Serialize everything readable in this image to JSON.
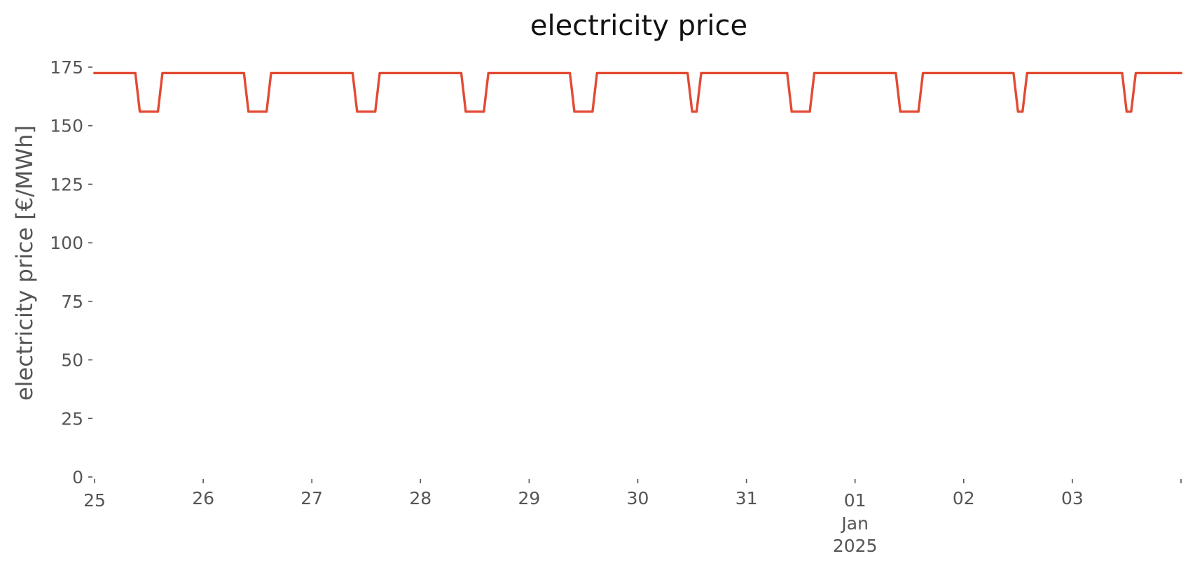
{
  "chart_data": {
    "type": "line",
    "title": "electricity price",
    "xlabel": "",
    "ylabel": "electricity price [€/MWh]",
    "ylim": [
      0,
      175
    ],
    "xlim": [
      "2024-12-25 00:00",
      "2025-01-04 00:00"
    ],
    "y_ticks": [
      "0",
      "25",
      "50",
      "75",
      "100",
      "125",
      "150",
      "175"
    ],
    "x_ticks": [
      {
        "value": "2024-12-25",
        "label": "25"
      },
      {
        "value": "2024-12-26",
        "label": "26"
      },
      {
        "value": "2024-12-27",
        "label": "27"
      },
      {
        "value": "2024-12-28",
        "label": "28"
      },
      {
        "value": "2024-12-29",
        "label": "29"
      },
      {
        "value": "2024-12-30",
        "label": "30"
      },
      {
        "value": "2024-12-31",
        "label": "31"
      },
      {
        "value": "2025-01-01",
        "label": "01",
        "sublabels": [
          "Jan",
          "2025"
        ]
      },
      {
        "value": "2025-01-02",
        "label": "02"
      },
      {
        "value": "2025-01-03",
        "label": "03"
      },
      {
        "value": "2025-01-04",
        "label": ""
      }
    ],
    "grid": false,
    "series": [
      {
        "color": "#e24a33",
        "x": [
          "2024-12-25 00:00",
          "2024-12-25 09:00",
          "2024-12-25 10:00",
          "2024-12-25 14:00",
          "2024-12-25 15:00",
          "2024-12-26 09:00",
          "2024-12-26 10:00",
          "2024-12-26 14:00",
          "2024-12-26 15:00",
          "2024-12-27 09:00",
          "2024-12-27 10:00",
          "2024-12-27 14:00",
          "2024-12-27 15:00",
          "2024-12-28 09:00",
          "2024-12-28 10:00",
          "2024-12-28 14:00",
          "2024-12-28 15:00",
          "2024-12-29 09:00",
          "2024-12-29 10:00",
          "2024-12-29 14:00",
          "2024-12-29 15:00",
          "2024-12-30 11:00",
          "2024-12-30 12:00",
          "2024-12-30 13:00",
          "2024-12-30 14:00",
          "2024-12-31 09:00",
          "2024-12-31 10:00",
          "2024-12-31 14:00",
          "2024-12-31 15:00",
          "2025-01-01 09:00",
          "2025-01-01 10:00",
          "2025-01-01 14:00",
          "2025-01-01 15:00",
          "2025-01-02 11:00",
          "2025-01-02 12:00",
          "2025-01-02 13:00",
          "2025-01-02 14:00",
          "2025-01-03 11:00",
          "2025-01-03 12:00",
          "2025-01-03 13:00",
          "2025-01-03 14:00",
          "2025-01-04 00:00"
        ],
        "values": [
          172.5,
          172.5,
          156,
          156,
          172.5,
          172.5,
          156,
          156,
          172.5,
          172.5,
          156,
          156,
          172.5,
          172.5,
          156,
          156,
          172.5,
          172.5,
          156,
          156,
          172.5,
          172.5,
          156,
          156,
          172.5,
          172.5,
          156,
          156,
          172.5,
          172.5,
          156,
          156,
          172.5,
          172.5,
          156,
          156,
          172.5,
          172.5,
          156,
          156,
          172.5,
          172.5
        ]
      }
    ]
  }
}
